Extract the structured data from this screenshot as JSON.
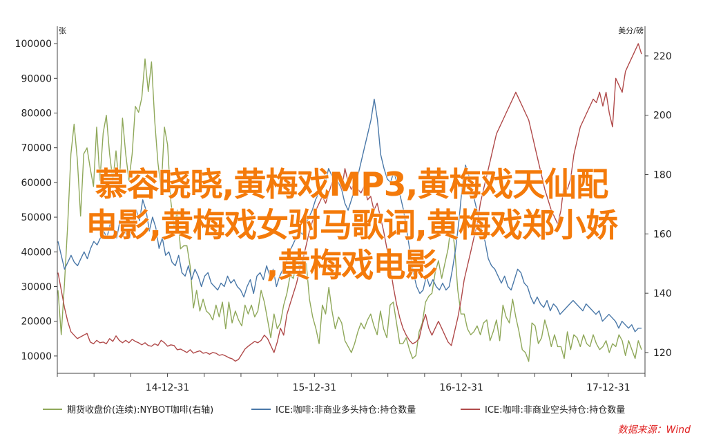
{
  "chart_data": {
    "type": "line",
    "left_axis": {
      "unit": "张",
      "ticks": [
        10000,
        20000,
        30000,
        40000,
        50000,
        60000,
        70000,
        80000,
        90000,
        100000
      ],
      "range": [
        5000,
        105000
      ]
    },
    "right_axis": {
      "unit": "美分/磅",
      "ticks": [
        120,
        140,
        160,
        180,
        200,
        220
      ],
      "range": [
        113,
        230
      ]
    },
    "x_ticks": [
      "14-12-31",
      "15-12-31",
      "16-12-31",
      "17-12-31"
    ],
    "grid": false,
    "legend_position": "bottom",
    "series": [
      {
        "name": "期货收盘价(连续):NYBOT咖啡(右轴)",
        "axis": "right",
        "color": "#8fa85a",
        "values": [
          141,
          126,
          143,
          163,
          187,
          197,
          185,
          166,
          187,
          189,
          182,
          176,
          196,
          178,
          194,
          200,
          187,
          178,
          188,
          176,
          199,
          187,
          178,
          187,
          203,
          201,
          206,
          219,
          208,
          218,
          198,
          184,
          175,
          196,
          190,
          171,
          162,
          168,
          155,
          156,
          156,
          149,
          135,
          141,
          134,
          138,
          134,
          133,
          131,
          136,
          132,
          137,
          128,
          137,
          130,
          134,
          131,
          129,
          136,
          133,
          136,
          132,
          134,
          141,
          137,
          131,
          125,
          133,
          128,
          130,
          136,
          140,
          146,
          145,
          151,
          149,
          151,
          150,
          138,
          132,
          128,
          123,
          136,
          133,
          142,
          134,
          128,
          132,
          130,
          124,
          122,
          120,
          123,
          127,
          130,
          128,
          131,
          133,
          129,
          126,
          134,
          128,
          125,
          136,
          137,
          130,
          123,
          123,
          125,
          121,
          118,
          119,
          127,
          130,
          137,
          139,
          140,
          147,
          151,
          145,
          150,
          155,
          164,
          156,
          141,
          133,
          133,
          128,
          126,
          127,
          129,
          126,
          130,
          131,
          124,
          127,
          131,
          124,
          136,
          132,
          130,
          138,
          132,
          127,
          121,
          120,
          117,
          130,
          129,
          123,
          125,
          131,
          127,
          122,
          126,
          122,
          122,
          118,
          127,
          121,
          126,
          125,
          122,
          126,
          123,
          122,
          126,
          123,
          121,
          122,
          124,
          120,
          123,
          122,
          126,
          124,
          119,
          124,
          121,
          118,
          124,
          121
        ]
      },
      {
        "name": "ICE:咖啡:非商业多头持仓:持仓数量",
        "axis": "left",
        "color": "#4a78a8",
        "values": [
          43000,
          39000,
          35000,
          37000,
          39000,
          37000,
          36000,
          38000,
          40000,
          38000,
          41000,
          43000,
          42000,
          44000,
          46000,
          44000,
          48000,
          46000,
          44000,
          49000,
          47000,
          45000,
          44000,
          48000,
          52000,
          49000,
          55000,
          52000,
          46000,
          50000,
          47000,
          41000,
          44000,
          39000,
          40000,
          37000,
          36000,
          39000,
          34000,
          33000,
          36000,
          32000,
          35000,
          33000,
          30000,
          33000,
          34000,
          31000,
          30000,
          29000,
          31000,
          30000,
          33000,
          31000,
          32000,
          30000,
          29000,
          27000,
          30000,
          32000,
          28000,
          33000,
          34000,
          32000,
          36000,
          33000,
          35000,
          30000,
          33000,
          35000,
          37000,
          40000,
          42000,
          44000,
          46000,
          45000,
          48000,
          50000,
          52000,
          55000,
          57000,
          58000,
          60000,
          64000,
          62000,
          61000,
          60000,
          58000,
          54000,
          52000,
          55000,
          58000,
          62000,
          66000,
          70000,
          74000,
          78000,
          84000,
          78000,
          68000,
          64000,
          61000,
          60000,
          63000,
          60000,
          56000,
          52000,
          46000,
          40000,
          34000,
          30000,
          28000,
          29000,
          33000,
          30000,
          32000,
          30000,
          29000,
          31000,
          29000,
          30000,
          35000,
          41000,
          49000,
          59000,
          65000,
          62000,
          58000,
          54000,
          50000,
          46000,
          43000,
          38000,
          36000,
          35000,
          33000,
          31000,
          33000,
          30000,
          29000,
          32000,
          35000,
          34000,
          31000,
          30000,
          27000,
          25000,
          27000,
          25000,
          24000,
          26000,
          23000,
          25000,
          24000,
          22000,
          23000,
          24000,
          25000,
          26000,
          25000,
          24000,
          23000,
          25000,
          24000,
          23000,
          22000,
          23000,
          20000,
          21000,
          22000,
          21000,
          20000,
          18000,
          20000,
          19000,
          18000,
          19000,
          17000,
          18000,
          18000
        ]
      },
      {
        "name": "ICE:咖啡:非商业空头持仓:持仓数量",
        "axis": "left",
        "color": "#b04a4a",
        "values": [
          34000,
          29000,
          24000,
          20000,
          17000,
          16000,
          15000,
          15500,
          16000,
          16500,
          14000,
          13500,
          14500,
          13800,
          14000,
          13500,
          15000,
          14200,
          15800,
          14500,
          13800,
          14500,
          13800,
          14800,
          14200,
          13800,
          13200,
          13800,
          13000,
          12800,
          13500,
          13000,
          14500,
          13800,
          12800,
          13200,
          13000,
          11800,
          12000,
          11500,
          11000,
          11800,
          10800,
          11200,
          11500,
          10800,
          11000,
          10500,
          11000,
          10800,
          10200,
          10400,
          10000,
          9500,
          9200,
          8500,
          9000,
          10500,
          12000,
          12800,
          13500,
          14200,
          13800,
          14500,
          16000,
          15000,
          13000,
          11000,
          14000,
          18000,
          16000,
          22000,
          25000,
          28000,
          31000,
          35000,
          38000,
          42000,
          46000,
          49000,
          52000,
          54000,
          56000,
          54000,
          57000,
          60000,
          58000,
          62000,
          58000,
          64000,
          60000,
          58000,
          60000,
          58000,
          57000,
          59000,
          55000,
          56000,
          52000,
          54000,
          50000,
          46000,
          41000,
          36000,
          30000,
          25000,
          21000,
          18000,
          16000,
          14500,
          13500,
          14000,
          15000,
          19000,
          22000,
          18000,
          16000,
          18000,
          20000,
          18000,
          16000,
          14000,
          13000,
          17000,
          21000,
          26000,
          32000,
          36000,
          40000,
          44000,
          48000,
          54000,
          58000,
          62000,
          66000,
          70000,
          74000,
          76000,
          78000,
          80000,
          82000,
          84000,
          86000,
          84000,
          82000,
          80000,
          78000,
          74000,
          70000,
          66000,
          62000,
          58000,
          55000,
          52000,
          50000,
          48000,
          52000,
          60000,
          58000,
          61000,
          68000,
          72000,
          76000,
          78000,
          80000,
          82000,
          84000,
          83000,
          86000,
          82000,
          86000,
          80000,
          76000,
          90000,
          88000,
          86000,
          92000,
          94000,
          96000,
          98000,
          100000,
          97000
        ]
      }
    ]
  },
  "legend": [
    {
      "label": "期货收盘价(连续):NYBOT咖啡(右轴)",
      "color": "#8fa85a"
    },
    {
      "label": "ICE:咖啡:非商业多头持仓:持仓数量",
      "color": "#4a78a8"
    },
    {
      "label": "ICE:咖啡:非商业空头持仓:持仓数量",
      "color": "#b04a4a"
    }
  ],
  "source": "数据来源：Wind",
  "overlay_text": [
    "慕容晓晓,黄梅戏MP3,黄梅戏天仙配",
    "电影,黄梅戏女驸马歌词,黄梅戏郑小娇",
    ",黄梅戏电影"
  ]
}
